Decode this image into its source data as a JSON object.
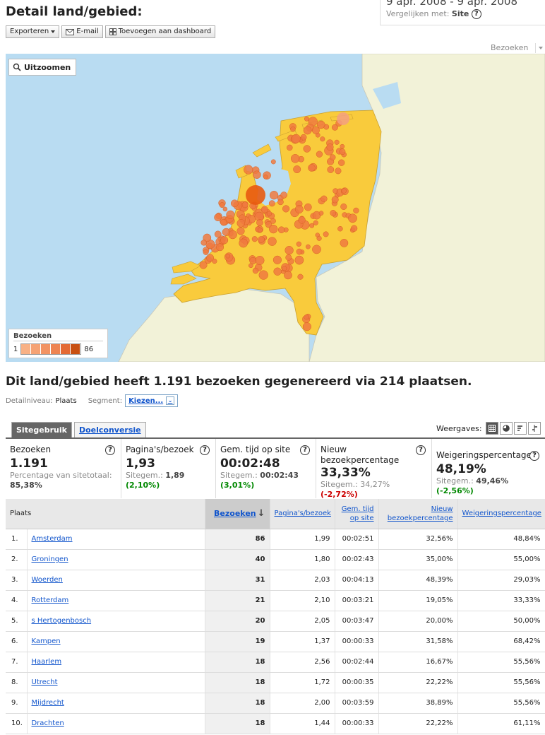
{
  "header": {
    "title": "Detail land/gebied:",
    "date_range": "9 apr. 2008 - 9 apr. 2008",
    "compare_label": "Vergelijken met:",
    "compare_value": "Site"
  },
  "toolbar": {
    "export_label": "Exporteren",
    "email_label": "E-mail",
    "dashboard_label": "Toevoegen aan dashboard"
  },
  "map": {
    "metric_select": "Bezoeken",
    "zoom_label": "Uitzoomen",
    "legend_title": "Bezoeken",
    "legend_min": "1",
    "legend_max": "86",
    "legend_colors": [
      "#f8b185",
      "#f5a274",
      "#f29363",
      "#ee8452",
      "#e46a34",
      "#c85012"
    ],
    "land_color": "#f9cb3c",
    "sea_color": "#b9dcf2",
    "neighbor_color": "#f2f2d8",
    "dot_color": "#f07a40"
  },
  "summary": "Dit land/gebied heeft 1.191 bezoeken gegenereerd via 214 plaatsen.",
  "detail": {
    "level_label": "Detailniveau:",
    "level_value": "Plaats",
    "segment_label": "Segment:",
    "segment_value": "Kiezen..."
  },
  "tabs": {
    "active": "Sitegebruik",
    "inactive": "Doelconversie"
  },
  "views_label": "Weergaves:",
  "scorecards": [
    {
      "title": "Bezoeken",
      "value": "1.191",
      "sub_label": "Percentage van sitetotaal:",
      "sub_value": "85,38%",
      "delta": ""
    },
    {
      "title": "Pagina's/bezoek",
      "value": "1,93",
      "sub_label": "Sitegem.:",
      "sub_value": "1,89",
      "delta": "(2,10%)"
    },
    {
      "title": "Gem. tijd op site",
      "value": "00:02:48",
      "sub_label": "Sitegem.:",
      "sub_value": "00:02:43",
      "delta": "(3,01%)"
    },
    {
      "title": "Nieuw bezoekpercentage",
      "value": "33,33%",
      "sub_label": "Sitegem.:",
      "sub_value": "34,27%",
      "delta": "(-2,72%)"
    },
    {
      "title": "Weigeringspercentage",
      "value": "48,19%",
      "sub_label": "Sitegem.:",
      "sub_value": "49,46%",
      "delta": "(-2,56%)"
    }
  ],
  "table": {
    "columns": [
      "Plaats",
      "Bezoeken",
      "Pagina's/bezoek",
      "Gem. tijd op site",
      "Nieuw bezoekpercentage",
      "Weigeringspercentage"
    ],
    "rows": [
      {
        "rank": "1.",
        "city": "Amsterdam",
        "visits": "86",
        "pages": "1,99",
        "time": "00:02:51",
        "new": "32,56%",
        "bounce": "48,84%"
      },
      {
        "rank": "2.",
        "city": "Groningen",
        "visits": "40",
        "pages": "1,80",
        "time": "00:02:43",
        "new": "35,00%",
        "bounce": "55,00%"
      },
      {
        "rank": "3.",
        "city": "Woerden",
        "visits": "31",
        "pages": "2,03",
        "time": "00:04:13",
        "new": "48,39%",
        "bounce": "29,03%"
      },
      {
        "rank": "4.",
        "city": "Rotterdam",
        "visits": "21",
        "pages": "2,10",
        "time": "00:03:21",
        "new": "19,05%",
        "bounce": "33,33%"
      },
      {
        "rank": "5.",
        "city": "s Hertogenbosch",
        "visits": "20",
        "pages": "2,05",
        "time": "00:03:47",
        "new": "20,00%",
        "bounce": "50,00%"
      },
      {
        "rank": "6.",
        "city": "Kampen",
        "visits": "19",
        "pages": "1,37",
        "time": "00:00:33",
        "new": "31,58%",
        "bounce": "68,42%"
      },
      {
        "rank": "7.",
        "city": "Haarlem",
        "visits": "18",
        "pages": "2,56",
        "time": "00:02:44",
        "new": "16,67%",
        "bounce": "55,56%"
      },
      {
        "rank": "8.",
        "city": "Utrecht",
        "visits": "18",
        "pages": "1,72",
        "time": "00:00:35",
        "new": "22,22%",
        "bounce": "55,56%"
      },
      {
        "rank": "9.",
        "city": "Mijdrecht",
        "visits": "18",
        "pages": "2,00",
        "time": "00:03:59",
        "new": "38,89%",
        "bounce": "55,56%"
      },
      {
        "rank": "10.",
        "city": "Drachten",
        "visits": "18",
        "pages": "1,44",
        "time": "00:00:33",
        "new": "22,22%",
        "bounce": "61,11%"
      }
    ]
  }
}
